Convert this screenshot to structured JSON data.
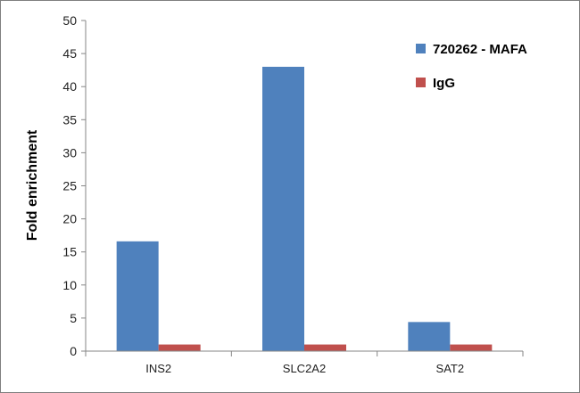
{
  "chart_data": {
    "type": "bar",
    "title": "",
    "xlabel": "",
    "ylabel": "Fold enrichment",
    "categories": [
      "INS2",
      "SLC2A2",
      "SAT2"
    ],
    "series": [
      {
        "name": "720262 - MAFA",
        "color": "#4f81bd",
        "values": [
          16.6,
          43.0,
          4.4
        ]
      },
      {
        "name": "IgG",
        "color": "#c0504d",
        "values": [
          1.0,
          1.0,
          1.0
        ]
      }
    ],
    "ylim": [
      0,
      50
    ],
    "yticks": [
      0,
      5,
      10,
      15,
      20,
      25,
      30,
      35,
      40,
      45,
      50
    ],
    "grid": false,
    "legend_position": "top-right"
  }
}
